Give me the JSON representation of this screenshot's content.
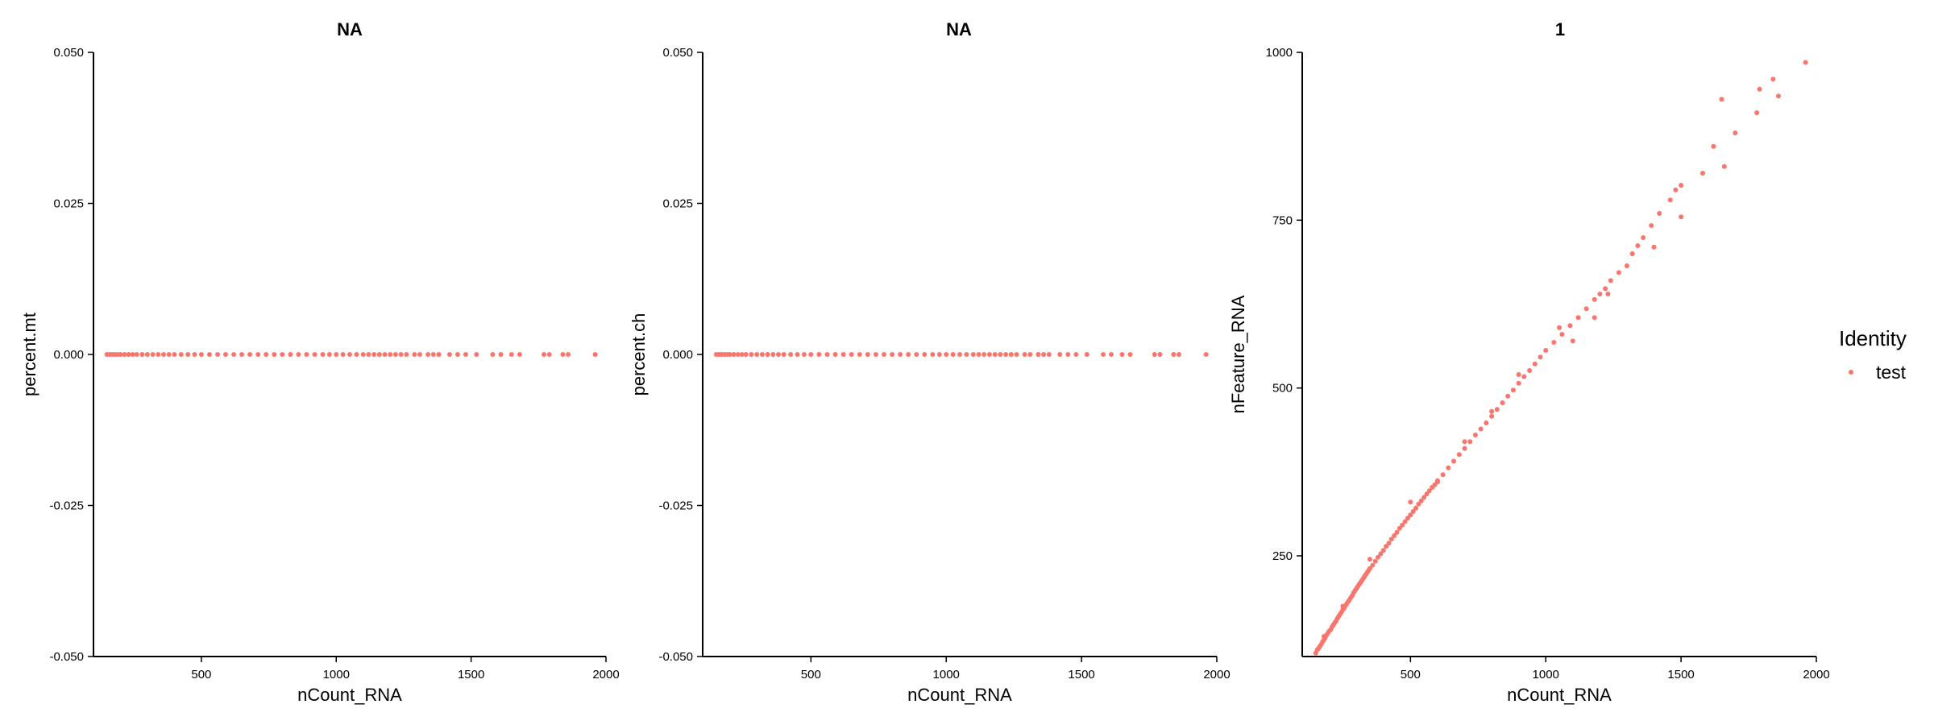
{
  "chart_data": [
    {
      "type": "scatter",
      "title": "NA",
      "xlabel": "nCount_RNA",
      "ylabel": "percent.mt",
      "xlim": [
        100,
        2000
      ],
      "ylim": [
        -0.05,
        0.05
      ],
      "xticks": [
        500,
        1000,
        1500,
        2000
      ],
      "xtick_labels": [
        "500",
        "1000",
        "1500",
        "2000"
      ],
      "yticks": [
        -0.05,
        -0.025,
        0,
        0.025,
        0.05
      ],
      "ytick_labels": [
        "-0.050",
        "-0.025",
        "0.000",
        "0.025",
        "0.050"
      ],
      "grid": false,
      "series": [
        {
          "name": "test",
          "color": "#F8766D",
          "points": [
            [
              150,
              0
            ],
            [
              160,
              0
            ],
            [
              170,
              0
            ],
            [
              180,
              0
            ],
            [
              190,
              0
            ],
            [
              200,
              0
            ],
            [
              215,
              0
            ],
            [
              230,
              0
            ],
            [
              245,
              0
            ],
            [
              260,
              0
            ],
            [
              280,
              0
            ],
            [
              300,
              0
            ],
            [
              320,
              0
            ],
            [
              340,
              0
            ],
            [
              360,
              0
            ],
            [
              380,
              0
            ],
            [
              400,
              0
            ],
            [
              425,
              0
            ],
            [
              450,
              0
            ],
            [
              475,
              0
            ],
            [
              500,
              0
            ],
            [
              530,
              0
            ],
            [
              560,
              0
            ],
            [
              590,
              0
            ],
            [
              620,
              0
            ],
            [
              650,
              0
            ],
            [
              680,
              0
            ],
            [
              710,
              0
            ],
            [
              740,
              0
            ],
            [
              770,
              0
            ],
            [
              800,
              0
            ],
            [
              830,
              0
            ],
            [
              860,
              0
            ],
            [
              890,
              0
            ],
            [
              920,
              0
            ],
            [
              950,
              0
            ],
            [
              975,
              0
            ],
            [
              1000,
              0
            ],
            [
              1025,
              0
            ],
            [
              1050,
              0
            ],
            [
              1075,
              0
            ],
            [
              1100,
              0
            ],
            [
              1120,
              0
            ],
            [
              1140,
              0
            ],
            [
              1160,
              0
            ],
            [
              1180,
              0
            ],
            [
              1200,
              0
            ],
            [
              1220,
              0
            ],
            [
              1240,
              0
            ],
            [
              1260,
              0
            ],
            [
              1290,
              0
            ],
            [
              1310,
              0
            ],
            [
              1340,
              0
            ],
            [
              1360,
              0
            ],
            [
              1380,
              0
            ],
            [
              1420,
              0
            ],
            [
              1450,
              0
            ],
            [
              1480,
              0
            ],
            [
              1520,
              0
            ],
            [
              1580,
              0
            ],
            [
              1610,
              0
            ],
            [
              1650,
              0
            ],
            [
              1680,
              0
            ],
            [
              1770,
              0
            ],
            [
              1790,
              0
            ],
            [
              1840,
              0
            ],
            [
              1860,
              0
            ],
            [
              1960,
              0
            ]
          ]
        }
      ]
    },
    {
      "type": "scatter",
      "title": "NA",
      "xlabel": "nCount_RNA",
      "ylabel": "percent.ch",
      "xlim": [
        100,
        2000
      ],
      "ylim": [
        -0.05,
        0.05
      ],
      "xticks": [
        500,
        1000,
        1500,
        2000
      ],
      "xtick_labels": [
        "500",
        "1000",
        "1500",
        "2000"
      ],
      "yticks": [
        -0.05,
        -0.025,
        0,
        0.025,
        0.05
      ],
      "ytick_labels": [
        "-0.050",
        "-0.025",
        "0.000",
        "0.025",
        "0.050"
      ],
      "grid": false,
      "series": [
        {
          "name": "test",
          "color": "#F8766D",
          "points": [
            [
              150,
              0
            ],
            [
              160,
              0
            ],
            [
              170,
              0
            ],
            [
              180,
              0
            ],
            [
              190,
              0
            ],
            [
              200,
              0
            ],
            [
              215,
              0
            ],
            [
              230,
              0
            ],
            [
              245,
              0
            ],
            [
              260,
              0
            ],
            [
              280,
              0
            ],
            [
              300,
              0
            ],
            [
              320,
              0
            ],
            [
              340,
              0
            ],
            [
              360,
              0
            ],
            [
              380,
              0
            ],
            [
              400,
              0
            ],
            [
              425,
              0
            ],
            [
              450,
              0
            ],
            [
              475,
              0
            ],
            [
              500,
              0
            ],
            [
              530,
              0
            ],
            [
              560,
              0
            ],
            [
              590,
              0
            ],
            [
              620,
              0
            ],
            [
              650,
              0
            ],
            [
              680,
              0
            ],
            [
              710,
              0
            ],
            [
              740,
              0
            ],
            [
              770,
              0
            ],
            [
              800,
              0
            ],
            [
              830,
              0
            ],
            [
              860,
              0
            ],
            [
              890,
              0
            ],
            [
              920,
              0
            ],
            [
              950,
              0
            ],
            [
              975,
              0
            ],
            [
              1000,
              0
            ],
            [
              1025,
              0
            ],
            [
              1050,
              0
            ],
            [
              1075,
              0
            ],
            [
              1100,
              0
            ],
            [
              1120,
              0
            ],
            [
              1140,
              0
            ],
            [
              1160,
              0
            ],
            [
              1180,
              0
            ],
            [
              1200,
              0
            ],
            [
              1220,
              0
            ],
            [
              1240,
              0
            ],
            [
              1260,
              0
            ],
            [
              1290,
              0
            ],
            [
              1310,
              0
            ],
            [
              1340,
              0
            ],
            [
              1360,
              0
            ],
            [
              1380,
              0
            ],
            [
              1420,
              0
            ],
            [
              1450,
              0
            ],
            [
              1480,
              0
            ],
            [
              1520,
              0
            ],
            [
              1580,
              0
            ],
            [
              1610,
              0
            ],
            [
              1650,
              0
            ],
            [
              1680,
              0
            ],
            [
              1770,
              0
            ],
            [
              1790,
              0
            ],
            [
              1840,
              0
            ],
            [
              1860,
              0
            ],
            [
              1960,
              0
            ]
          ]
        }
      ]
    },
    {
      "type": "scatter",
      "title": "1",
      "xlabel": "nCount_RNA",
      "ylabel": "nFeature_RNA",
      "xlim": [
        100,
        2000
      ],
      "ylim": [
        100,
        1000
      ],
      "xticks": [
        500,
        1000,
        1500,
        2000
      ],
      "xtick_labels": [
        "500",
        "1000",
        "1500",
        "2000"
      ],
      "yticks": [
        250,
        500,
        750,
        1000
      ],
      "ytick_labels": [
        "250",
        "500",
        "750",
        "1000"
      ],
      "grid": false,
      "series": [
        {
          "name": "test",
          "color": "#F8766D",
          "points": [
            [
              150,
              105
            ],
            [
              155,
              110
            ],
            [
              160,
              112
            ],
            [
              165,
              115
            ],
            [
              170,
              118
            ],
            [
              175,
              122
            ],
            [
              180,
              125
            ],
            [
              185,
              128
            ],
            [
              190,
              132
            ],
            [
              195,
              135
            ],
            [
              200,
              138
            ],
            [
              205,
              140
            ],
            [
              210,
              144
            ],
            [
              215,
              147
            ],
            [
              220,
              150
            ],
            [
              225,
              153
            ],
            [
              230,
              157
            ],
            [
              235,
              160
            ],
            [
              240,
              163
            ],
            [
              245,
              166
            ],
            [
              250,
              170
            ],
            [
              255,
              172
            ],
            [
              260,
              176
            ],
            [
              265,
              179
            ],
            [
              270,
              182
            ],
            [
              275,
              185
            ],
            [
              280,
              188
            ],
            [
              285,
              191
            ],
            [
              290,
              195
            ],
            [
              295,
              198
            ],
            [
              300,
              201
            ],
            [
              305,
              204
            ],
            [
              310,
              207
            ],
            [
              315,
              210
            ],
            [
              320,
              213
            ],
            [
              325,
              216
            ],
            [
              330,
              219
            ],
            [
              335,
              222
            ],
            [
              340,
              225
            ],
            [
              345,
              228
            ],
            [
              350,
              231
            ],
            [
              360,
              236
            ],
            [
              370,
              242
            ],
            [
              380,
              248
            ],
            [
              390,
              253
            ],
            [
              400,
              258
            ],
            [
              410,
              264
            ],
            [
              420,
              269
            ],
            [
              430,
              275
            ],
            [
              440,
              280
            ],
            [
              450,
              285
            ],
            [
              460,
              291
            ],
            [
              470,
              296
            ],
            [
              480,
              301
            ],
            [
              490,
              306
            ],
            [
              500,
              311
            ],
            [
              510,
              316
            ],
            [
              520,
              321
            ],
            [
              530,
              327
            ],
            [
              540,
              332
            ],
            [
              550,
              337
            ],
            [
              560,
              342
            ],
            [
              570,
              347
            ],
            [
              580,
              352
            ],
            [
              590,
              356
            ],
            [
              600,
              362
            ],
            [
              620,
              371
            ],
            [
              640,
              381
            ],
            [
              660,
              391
            ],
            [
              680,
              401
            ],
            [
              700,
              410
            ],
            [
              720,
              420
            ],
            [
              740,
              430
            ],
            [
              760,
              439
            ],
            [
              780,
              448
            ],
            [
              800,
              458
            ],
            [
              820,
              468
            ],
            [
              840,
              478
            ],
            [
              860,
              488
            ],
            [
              880,
              497
            ],
            [
              900,
              507
            ],
            [
              920,
              517
            ],
            [
              940,
              526
            ],
            [
              960,
              536
            ],
            [
              980,
              546
            ],
            [
              1000,
              556
            ],
            [
              1030,
              568
            ],
            [
              1060,
              580
            ],
            [
              1090,
              593
            ],
            [
              1120,
              605
            ],
            [
              1150,
              618
            ],
            [
              1180,
              632
            ],
            [
              1200,
              640
            ],
            [
              1220,
              648
            ],
            [
              1240,
              660
            ],
            [
              1270,
              672
            ],
            [
              1300,
              682
            ],
            [
              1320,
              700
            ],
            [
              1340,
              712
            ],
            [
              1360,
              724
            ],
            [
              1390,
              742
            ],
            [
              1420,
              760
            ],
            [
              1460,
              780
            ],
            [
              1480,
              795
            ],
            [
              1500,
              802
            ],
            [
              1580,
              820
            ],
            [
              1620,
              860
            ],
            [
              1650,
              930
            ],
            [
              1660,
              830
            ],
            [
              1700,
              880
            ],
            [
              1780,
              910
            ],
            [
              1790,
              945
            ],
            [
              1840,
              960
            ],
            [
              1860,
              935
            ],
            [
              1960,
              985
            ],
            [
              1500,
              755
            ],
            [
              1320,
              700
            ],
            [
              1230,
              640
            ],
            [
              1180,
              605
            ],
            [
              1400,
              710
            ],
            [
              1100,
              570
            ],
            [
              900,
              520
            ],
            [
              700,
              420
            ],
            [
              600,
              360
            ],
            [
              500,
              330
            ],
            [
              800,
              465
            ],
            [
              1050,
              590
            ],
            [
              350,
              245
            ],
            [
              250,
              175
            ],
            [
              180,
              130
            ]
          ]
        }
      ]
    }
  ],
  "legend": {
    "title": "Identity",
    "entries": [
      {
        "label": "test",
        "color": "#F8766D"
      }
    ]
  }
}
